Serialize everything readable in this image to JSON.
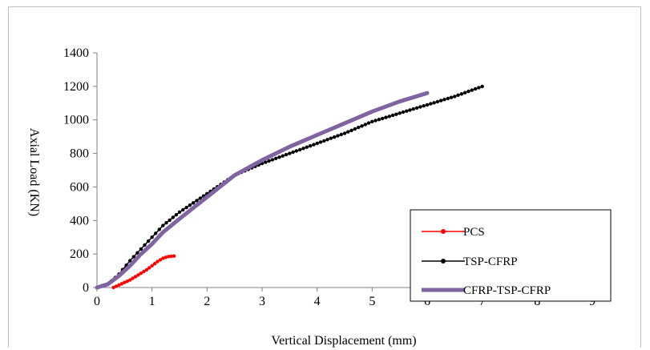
{
  "chart_data": {
    "type": "line",
    "title": "",
    "xlabel": "Vertical Displacement (mm)",
    "ylabel": "Axial Load (KN)",
    "xlim": [
      0,
      9
    ],
    "ylim": [
      0,
      1400
    ],
    "x_ticks": [
      0,
      1,
      2,
      3,
      4,
      5,
      6,
      7,
      8,
      9
    ],
    "y_ticks": [
      0,
      200,
      400,
      600,
      800,
      1000,
      1200,
      1400
    ],
    "grid": false,
    "legend_position": "bottom-right",
    "series": [
      {
        "name": "PCS",
        "color": "#ff0000",
        "marker": "circle",
        "points": [
          [
            0.3,
            0
          ],
          [
            0.4,
            15
          ],
          [
            0.5,
            30
          ],
          [
            0.6,
            45
          ],
          [
            0.7,
            65
          ],
          [
            0.8,
            85
          ],
          [
            0.9,
            105
          ],
          [
            1.0,
            130
          ],
          [
            1.1,
            155
          ],
          [
            1.2,
            175
          ],
          [
            1.3,
            185
          ],
          [
            1.4,
            188
          ]
        ]
      },
      {
        "name": "TSP-CFRP",
        "color": "#000000",
        "marker": "circle",
        "points": [
          [
            0.0,
            0
          ],
          [
            0.2,
            20
          ],
          [
            0.4,
            80
          ],
          [
            0.6,
            160
          ],
          [
            0.8,
            230
          ],
          [
            1.0,
            300
          ],
          [
            1.2,
            370
          ],
          [
            1.5,
            450
          ],
          [
            2.0,
            560
          ],
          [
            2.5,
            670
          ],
          [
            3.0,
            740
          ],
          [
            3.5,
            800
          ],
          [
            4.0,
            860
          ],
          [
            4.5,
            920
          ],
          [
            5.0,
            990
          ],
          [
            5.5,
            1040
          ],
          [
            6.0,
            1090
          ],
          [
            6.5,
            1140
          ],
          [
            7.0,
            1200
          ]
        ]
      },
      {
        "name": "CFRP-TSP-CFRP",
        "color": "#8064a2",
        "marker": "line",
        "points": [
          [
            0.0,
            0
          ],
          [
            0.2,
            20
          ],
          [
            0.4,
            70
          ],
          [
            0.6,
            130
          ],
          [
            0.8,
            200
          ],
          [
            1.0,
            260
          ],
          [
            1.2,
            330
          ],
          [
            1.5,
            410
          ],
          [
            2.0,
            540
          ],
          [
            2.5,
            670
          ],
          [
            3.0,
            760
          ],
          [
            3.5,
            840
          ],
          [
            4.0,
            910
          ],
          [
            4.5,
            980
          ],
          [
            5.0,
            1050
          ],
          [
            5.5,
            1110
          ],
          [
            6.0,
            1160
          ]
        ]
      }
    ]
  }
}
